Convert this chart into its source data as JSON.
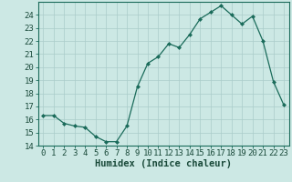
{
  "x": [
    0,
    1,
    2,
    3,
    4,
    5,
    6,
    7,
    8,
    9,
    10,
    11,
    12,
    13,
    14,
    15,
    16,
    17,
    18,
    19,
    20,
    21,
    22,
    23
  ],
  "y": [
    16.3,
    16.3,
    15.7,
    15.5,
    15.4,
    14.7,
    14.3,
    14.3,
    15.5,
    18.5,
    20.3,
    20.8,
    21.8,
    21.5,
    22.5,
    23.7,
    24.2,
    24.7,
    24.0,
    23.3,
    23.9,
    22.0,
    18.9,
    17.1
  ],
  "xlabel": "Humidex (Indice chaleur)",
  "ylim": [
    14,
    25
  ],
  "xlim": [
    -0.5,
    23.5
  ],
  "yticks": [
    14,
    15,
    16,
    17,
    18,
    19,
    20,
    21,
    22,
    23,
    24
  ],
  "xticks": [
    0,
    1,
    2,
    3,
    4,
    5,
    6,
    7,
    8,
    9,
    10,
    11,
    12,
    13,
    14,
    15,
    16,
    17,
    18,
    19,
    20,
    21,
    22,
    23
  ],
  "line_color": "#1a6b5a",
  "marker_color": "#1a6b5a",
  "bg_color": "#cce8e4",
  "grid_color": "#aaccca",
  "text_color": "#1a4a3a",
  "xlabel_fontsize": 7.5,
  "tick_fontsize": 6.5
}
